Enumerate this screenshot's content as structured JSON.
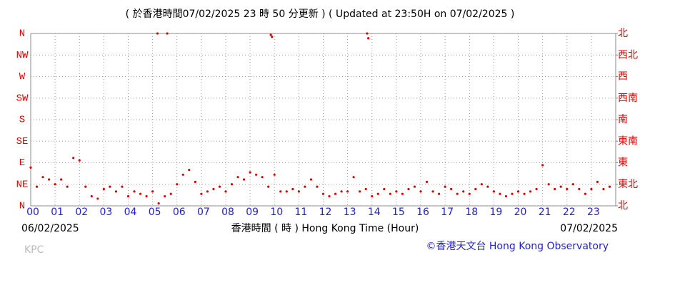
{
  "chart_data": {
    "type": "scatter",
    "title": "( 於香港時間07/02/2025 23 時 50 分更新 ) ( Updated at 23:50H on 07/02/2025 )",
    "x_label": "香港時間 ( 時 ) Hong Kong Time (Hour)",
    "start_date": "06/02/2025",
    "end_date": "07/02/2025",
    "station": "KPC",
    "credit": "©香港天文台 Hong Kong Observatory",
    "color": "#dd0000",
    "grid": true,
    "xlim": [
      0,
      24
    ],
    "xticks": [
      {
        "value": 0,
        "label": "00"
      },
      {
        "value": 1,
        "label": "01"
      },
      {
        "value": 2,
        "label": "02"
      },
      {
        "value": 3,
        "label": "03"
      },
      {
        "value": 4,
        "label": "04"
      },
      {
        "value": 5,
        "label": "05"
      },
      {
        "value": 6,
        "label": "06"
      },
      {
        "value": 7,
        "label": "07"
      },
      {
        "value": 8,
        "label": "08"
      },
      {
        "value": 9,
        "label": "09"
      },
      10,
      11,
      12,
      13,
      14,
      15,
      16,
      17,
      18,
      19,
      20,
      21,
      22,
      23
    ],
    "ylim": [
      0,
      360
    ],
    "yticks": [
      {
        "value": 0,
        "label": "N"
      },
      {
        "value": 45,
        "label": "NE"
      },
      {
        "value": 90,
        "label": "E"
      },
      {
        "value": 135,
        "label": "SE"
      },
      {
        "value": 180,
        "label": "S"
      },
      {
        "value": 225,
        "label": "SW"
      },
      {
        "value": 270,
        "label": "W"
      },
      {
        "value": 315,
        "label": "NW"
      },
      {
        "value": 360,
        "label": "N"
      }
    ],
    "y2lim": [
      0,
      360
    ],
    "y2ticks": [
      {
        "value": 0,
        "label": "北"
      },
      {
        "value": 45,
        "label": "東北"
      },
      {
        "value": 90,
        "label": "東"
      },
      {
        "value": 135,
        "label": "東南"
      },
      {
        "value": 180,
        "label": "南"
      },
      {
        "value": 225,
        "label": "西南"
      },
      {
        "value": 270,
        "label": "西"
      },
      {
        "value": 315,
        "label": "西北"
      },
      {
        "value": 360,
        "label": "北"
      }
    ],
    "x": [
      0,
      0.25,
      0.5,
      0.75,
      1,
      1.25,
      1.5,
      1.75,
      2,
      2.25,
      2.5,
      2.75,
      3,
      3.25,
      3.5,
      3.75,
      4,
      4.25,
      4.5,
      4.75,
      5,
      5.2,
      5.25,
      5.5,
      5.6,
      5.75,
      6,
      6.25,
      6.5,
      6.75,
      7,
      7.25,
      7.5,
      7.75,
      8,
      8.25,
      8.5,
      8.75,
      9,
      9.25,
      9.5,
      9.75,
      9.85,
      9.9,
      10,
      10.25,
      10.5,
      10.75,
      11,
      11.25,
      11.5,
      11.75,
      12,
      12.25,
      12.5,
      12.75,
      13,
      13.25,
      13.5,
      13.75,
      13.8,
      13.85,
      14,
      14.25,
      14.5,
      14.75,
      15,
      15.25,
      15.5,
      15.75,
      16,
      16.25,
      16.5,
      16.75,
      17,
      17.25,
      17.5,
      17.75,
      18,
      18.25,
      18.5,
      18.75,
      19,
      19.25,
      19.5,
      19.75,
      20,
      20.25,
      20.5,
      20.75,
      21,
      21.25,
      21.5,
      21.75,
      22,
      22.25,
      22.5,
      22.75,
      23,
      23.25,
      23.5,
      23.75
    ],
    "values": [
      80,
      40,
      60,
      55,
      45,
      55,
      40,
      100,
      95,
      40,
      20,
      15,
      35,
      40,
      30,
      40,
      20,
      30,
      25,
      20,
      30,
      360,
      5,
      20,
      360,
      25,
      45,
      65,
      75,
      50,
      25,
      30,
      35,
      40,
      30,
      45,
      60,
      55,
      70,
      65,
      60,
      40,
      357,
      353,
      65,
      30,
      30,
      35,
      30,
      40,
      55,
      40,
      25,
      20,
      25,
      30,
      30,
      60,
      30,
      35,
      360,
      350,
      20,
      25,
      35,
      25,
      30,
      25,
      35,
      40,
      30,
      50,
      30,
      25,
      40,
      35,
      25,
      30,
      25,
      35,
      45,
      40,
      30,
      25,
      20,
      25,
      30,
      25,
      30,
      35,
      85,
      45,
      35,
      40,
      35,
      45,
      35,
      25,
      35,
      50,
      35,
      40
    ]
  }
}
